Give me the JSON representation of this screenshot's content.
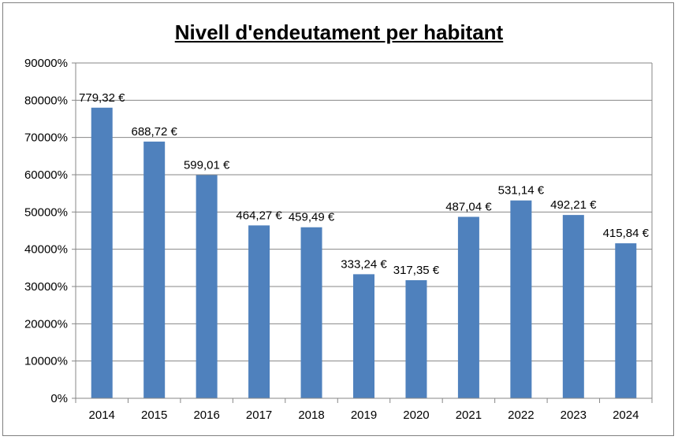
{
  "chart_data": {
    "type": "bar",
    "title": "Nivell d'endeutament per habitant",
    "categories": [
      "2014",
      "2015",
      "2016",
      "2017",
      "2018",
      "2019",
      "2020",
      "2021",
      "2022",
      "2023",
      "2024"
    ],
    "values": [
      78000,
      68900,
      59900,
      46400,
      45900,
      33300,
      31700,
      48700,
      53100,
      49200,
      41600
    ],
    "data_labels": [
      "779,32 €",
      "688,72 €",
      "599,01 €",
      "464,27 €",
      "459,49 €",
      "333,24 €",
      "317,35 €",
      "487,04 €",
      "531,14 €",
      "492,21 €",
      "415,84 €"
    ],
    "y_ticks": [
      "0%",
      "10000%",
      "20000%",
      "30000%",
      "40000%",
      "50000%",
      "60000%",
      "70000%",
      "80000%",
      "90000%"
    ],
    "ylim": [
      0,
      90000
    ],
    "grid": true,
    "bar_color": "#4F81BD"
  }
}
